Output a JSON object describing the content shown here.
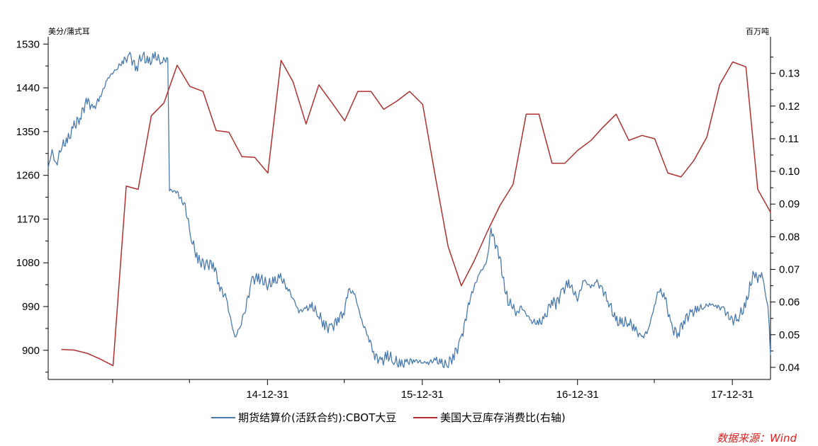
{
  "chart_data": {
    "type": "line",
    "left_unit": "美分/蒲式耳",
    "right_unit": "百万吨",
    "x_tick_labels": [
      "14-12-31",
      "15-12-31",
      "16-12-31",
      "17-12-31"
    ],
    "y_left": {
      "min": 840,
      "max": 1545,
      "ticks": [
        900,
        990,
        1080,
        1170,
        1260,
        1350,
        1440,
        1530
      ]
    },
    "y_right": {
      "min": 0.0363,
      "max": 0.1412,
      "ticks": [
        0.04,
        0.05,
        0.06,
        0.07,
        0.08,
        0.09,
        0.1,
        0.11,
        0.12,
        0.13
      ]
    },
    "x_range": [
      "2013-08-01",
      "2018-03-31"
    ],
    "series": [
      {
        "name": "期货结算价(活跃合约):CBOT大豆",
        "axis": "left",
        "color": "#4a7ab0",
        "points": [
          [
            "2013-08-01",
            1275
          ],
          [
            "2013-08-10",
            1310
          ],
          [
            "2013-08-20",
            1280
          ],
          [
            "2013-09-01",
            1320
          ],
          [
            "2013-09-15",
            1330
          ],
          [
            "2013-10-01",
            1360
          ],
          [
            "2013-10-15",
            1380
          ],
          [
            "2013-11-01",
            1415
          ],
          [
            "2013-11-15",
            1395
          ],
          [
            "2013-12-01",
            1420
          ],
          [
            "2013-12-20",
            1460
          ],
          [
            "2014-01-10",
            1480
          ],
          [
            "2014-01-25",
            1495
          ],
          [
            "2014-02-10",
            1505
          ],
          [
            "2014-02-25",
            1480
          ],
          [
            "2014-03-10",
            1510
          ],
          [
            "2014-03-25",
            1490
          ],
          [
            "2014-04-10",
            1505
          ],
          [
            "2014-04-25",
            1495
          ],
          [
            "2014-05-10",
            1500
          ],
          [
            "2014-05-14",
            1230
          ],
          [
            "2014-06-01",
            1225
          ],
          [
            "2014-06-20",
            1195
          ],
          [
            "2014-07-05",
            1130
          ],
          [
            "2014-07-20",
            1085
          ],
          [
            "2014-08-10",
            1075
          ],
          [
            "2014-08-25",
            1080
          ],
          [
            "2014-09-10",
            1030
          ],
          [
            "2014-09-25",
            1005
          ],
          [
            "2014-10-05",
            965
          ],
          [
            "2014-10-15",
            925
          ],
          [
            "2014-10-28",
            950
          ],
          [
            "2014-11-10",
            990
          ],
          [
            "2014-11-25",
            1045
          ],
          [
            "2014-12-10",
            1050
          ],
          [
            "2014-12-31",
            1035
          ],
          [
            "2015-01-15",
            1040
          ],
          [
            "2015-01-31",
            1050
          ],
          [
            "2015-02-15",
            1030
          ],
          [
            "2015-02-28",
            1010
          ],
          [
            "2015-03-15",
            980
          ],
          [
            "2015-03-31",
            985
          ],
          [
            "2015-04-15",
            990
          ],
          [
            "2015-04-30",
            975
          ],
          [
            "2015-05-15",
            950
          ],
          [
            "2015-05-31",
            945
          ],
          [
            "2015-06-15",
            965
          ],
          [
            "2015-06-30",
            980
          ],
          [
            "2015-07-10",
            1025
          ],
          [
            "2015-07-25",
            1015
          ],
          [
            "2015-08-10",
            960
          ],
          [
            "2015-08-25",
            930
          ],
          [
            "2015-09-10",
            890
          ],
          [
            "2015-09-25",
            875
          ],
          [
            "2015-10-10",
            890
          ],
          [
            "2015-10-25",
            880
          ],
          [
            "2015-11-10",
            870
          ],
          [
            "2015-11-25",
            875
          ],
          [
            "2015-12-10",
            880
          ],
          [
            "2015-12-31",
            875
          ],
          [
            "2016-01-15",
            875
          ],
          [
            "2016-01-31",
            880
          ],
          [
            "2016-02-15",
            872
          ],
          [
            "2016-02-28",
            870
          ],
          [
            "2016-03-15",
            890
          ],
          [
            "2016-03-31",
            920
          ],
          [
            "2016-04-10",
            960
          ],
          [
            "2016-04-20",
            1000
          ],
          [
            "2016-05-01",
            1030
          ],
          [
            "2016-05-15",
            1060
          ],
          [
            "2016-05-31",
            1080
          ],
          [
            "2016-06-10",
            1150
          ],
          [
            "2016-06-20",
            1120
          ],
          [
            "2016-07-01",
            1090
          ],
          [
            "2016-07-10",
            1040
          ],
          [
            "2016-07-20",
            1000
          ],
          [
            "2016-07-31",
            990
          ],
          [
            "2016-08-10",
            975
          ],
          [
            "2016-08-20",
            990
          ],
          [
            "2016-08-31",
            975
          ],
          [
            "2016-09-15",
            960
          ],
          [
            "2016-09-30",
            955
          ],
          [
            "2016-10-15",
            965
          ],
          [
            "2016-10-31",
            1005
          ],
          [
            "2016-11-10",
            995
          ],
          [
            "2016-11-25",
            1020
          ],
          [
            "2016-12-10",
            1040
          ],
          [
            "2016-12-31",
            1005
          ],
          [
            "2017-01-15",
            1045
          ],
          [
            "2017-01-31",
            1030
          ],
          [
            "2017-02-15",
            1040
          ],
          [
            "2017-02-28",
            1025
          ],
          [
            "2017-03-15",
            1000
          ],
          [
            "2017-03-31",
            960
          ],
          [
            "2017-04-15",
            955
          ],
          [
            "2017-04-30",
            960
          ],
          [
            "2017-05-15",
            945
          ],
          [
            "2017-05-31",
            925
          ],
          [
            "2017-06-15",
            940
          ],
          [
            "2017-06-30",
            990
          ],
          [
            "2017-07-10",
            1025
          ],
          [
            "2017-07-25",
            1010
          ],
          [
            "2017-08-10",
            945
          ],
          [
            "2017-08-25",
            935
          ],
          [
            "2017-09-10",
            965
          ],
          [
            "2017-09-25",
            975
          ],
          [
            "2017-10-10",
            985
          ],
          [
            "2017-10-25",
            990
          ],
          [
            "2017-11-10",
            995
          ],
          [
            "2017-11-25",
            990
          ],
          [
            "2017-12-10",
            985
          ],
          [
            "2017-12-31",
            960
          ],
          [
            "2018-01-15",
            970
          ],
          [
            "2018-01-31",
            990
          ],
          [
            "2018-02-10",
            1030
          ],
          [
            "2018-02-20",
            1060
          ],
          [
            "2018-03-01",
            1045
          ],
          [
            "2018-03-10",
            1060
          ],
          [
            "2018-03-15",
            1040
          ],
          [
            "2018-03-20",
            1010
          ],
          [
            "2018-03-25",
            990
          ],
          [
            "2018-03-28",
            950
          ],
          [
            "2018-03-30",
            905
          ],
          [
            "2018-03-31",
            890
          ]
        ]
      },
      {
        "name": "美国大豆库存消费比(右轴)",
        "axis": "right",
        "color": "#b03030",
        "points": [
          [
            "2013-09-01",
            0.0455
          ],
          [
            "2013-10-01",
            0.0453
          ],
          [
            "2013-11-01",
            0.0443
          ],
          [
            "2013-12-01",
            0.0426
          ],
          [
            "2014-01-01",
            0.0405
          ],
          [
            "2014-02-01",
            0.0955
          ],
          [
            "2014-03-01",
            0.0945
          ],
          [
            "2014-04-01",
            0.117
          ],
          [
            "2014-05-01",
            0.121
          ],
          [
            "2014-06-01",
            0.1325
          ],
          [
            "2014-07-01",
            0.126
          ],
          [
            "2014-08-01",
            0.1245
          ],
          [
            "2014-09-01",
            0.1125
          ],
          [
            "2014-10-01",
            0.112
          ],
          [
            "2014-11-01",
            0.1045
          ],
          [
            "2014-12-01",
            0.1043
          ],
          [
            "2015-01-01",
            0.0995
          ],
          [
            "2015-02-01",
            0.134
          ],
          [
            "2015-03-01",
            0.1275
          ],
          [
            "2015-04-01",
            0.1145
          ],
          [
            "2015-05-01",
            0.1265
          ],
          [
            "2015-06-01",
            0.121
          ],
          [
            "2015-07-01",
            0.1155
          ],
          [
            "2015-08-01",
            0.1245
          ],
          [
            "2015-09-01",
            0.1245
          ],
          [
            "2015-10-01",
            0.119
          ],
          [
            "2015-11-01",
            0.1215
          ],
          [
            "2015-12-01",
            0.1245
          ],
          [
            "2016-01-01",
            0.1205
          ],
          [
            "2016-02-01",
            0.0975
          ],
          [
            "2016-03-01",
            0.077
          ],
          [
            "2016-04-01",
            0.065
          ],
          [
            "2016-05-01",
            0.0725
          ],
          [
            "2016-06-01",
            0.0815
          ],
          [
            "2016-07-01",
            0.0895
          ],
          [
            "2016-08-01",
            0.096
          ],
          [
            "2016-09-01",
            0.1175
          ],
          [
            "2016-10-01",
            0.1175
          ],
          [
            "2016-11-01",
            0.1025
          ],
          [
            "2016-12-01",
            0.1025
          ],
          [
            "2017-01-01",
            0.1065
          ],
          [
            "2017-02-01",
            0.1095
          ],
          [
            "2017-03-01",
            0.1135
          ],
          [
            "2017-04-01",
            0.1175
          ],
          [
            "2017-05-01",
            0.1095
          ],
          [
            "2017-06-01",
            0.111
          ],
          [
            "2017-07-01",
            0.11
          ],
          [
            "2017-08-01",
            0.0995
          ],
          [
            "2017-09-01",
            0.0983
          ],
          [
            "2017-10-01",
            0.1033
          ],
          [
            "2017-11-01",
            0.1105
          ],
          [
            "2017-12-01",
            0.1265
          ],
          [
            "2018-01-01",
            0.1335
          ],
          [
            "2018-02-01",
            0.132
          ],
          [
            "2018-03-01",
            0.0945
          ],
          [
            "2018-03-31",
            0.0875
          ]
        ]
      }
    ],
    "legend_position": "bottom",
    "grid": false
  },
  "source": "数据来源：Wind"
}
